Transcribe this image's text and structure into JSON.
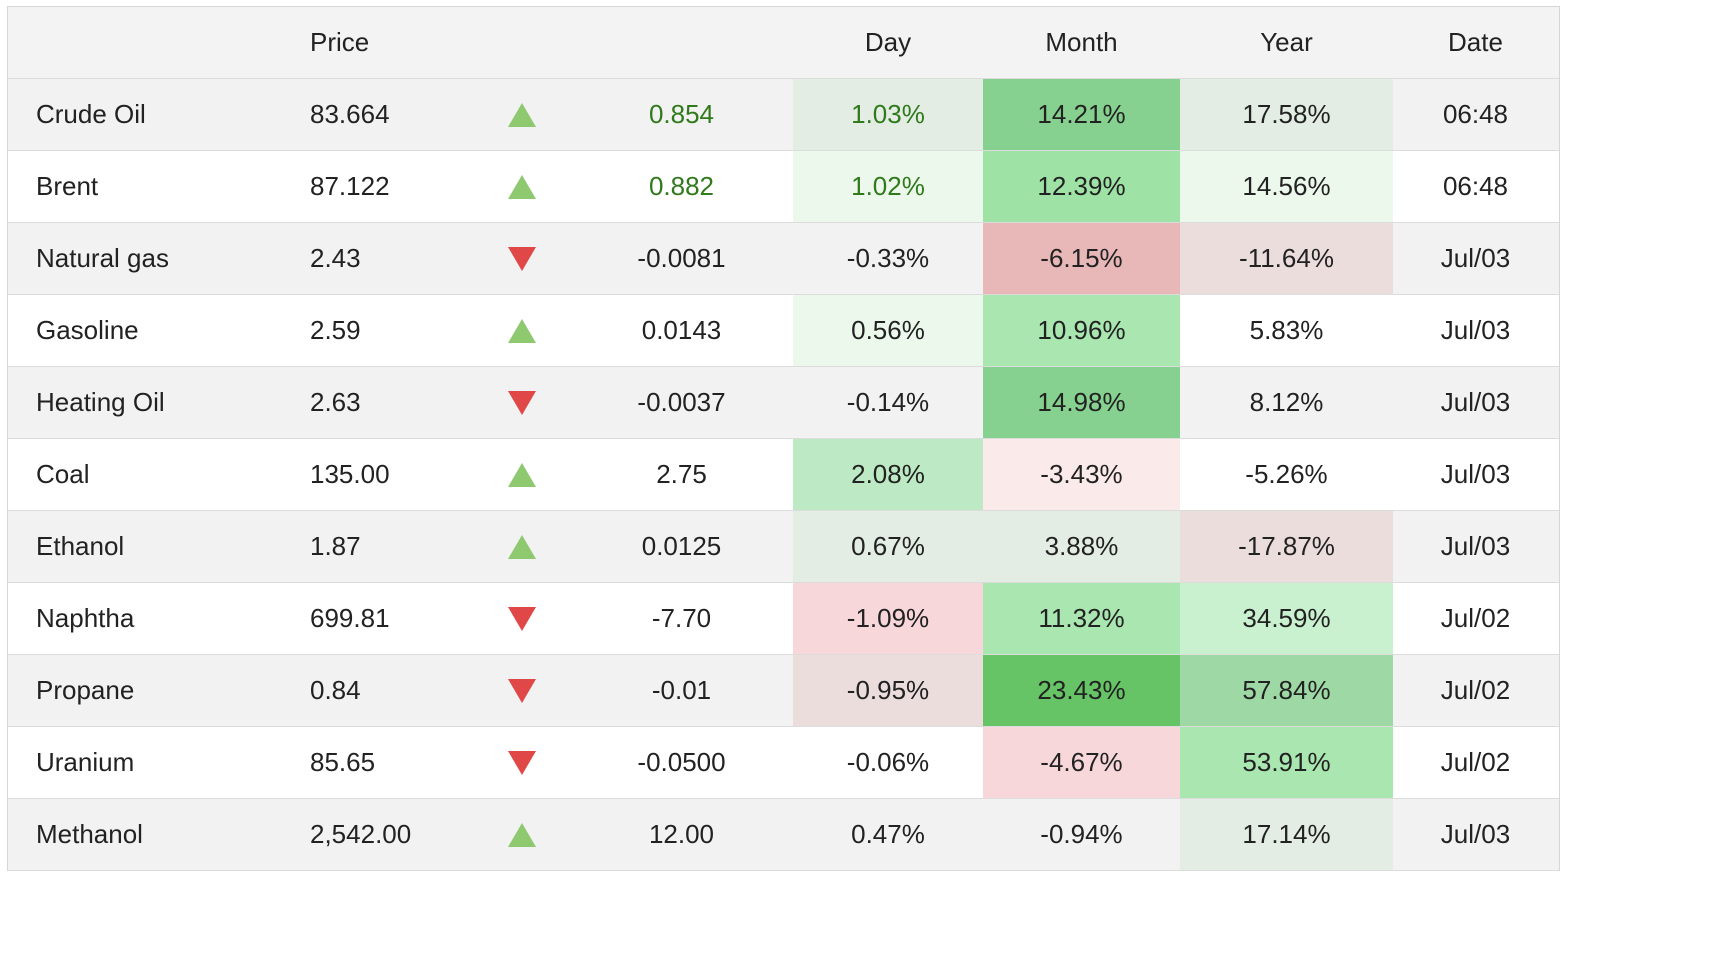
{
  "columns": {
    "name": "",
    "price": "Price",
    "arrow": "",
    "change": "",
    "day": "Day",
    "month": "Month",
    "year": "Year",
    "date": "Date"
  },
  "colors": {
    "up_arrow": "#8fc96f",
    "down_arrow": "#e04848",
    "positive_text": "#2f7a1a"
  },
  "rows": [
    {
      "name": "Crude Oil",
      "price": "83.664",
      "direction": "up",
      "change": "0.854",
      "day": "1.03%",
      "month": "14.21%",
      "year": "17.58%",
      "date": "06:48",
      "highlight_text": true,
      "day_bg": "#e3ede3",
      "month_bg": "#86d18f",
      "year_bg": "#e3ede3"
    },
    {
      "name": "Brent",
      "price": "87.122",
      "direction": "up",
      "change": "0.882",
      "day": "1.02%",
      "month": "12.39%",
      "year": "14.56%",
      "date": "06:48",
      "highlight_text": true,
      "day_bg": "#edf8ed",
      "month_bg": "#9ee3a5",
      "year_bg": "#edf8ed"
    },
    {
      "name": "Natural gas",
      "price": "2.43",
      "direction": "down",
      "change": "-0.0081",
      "day": "-0.33%",
      "month": "-6.15%",
      "year": "-11.64%",
      "date": "Jul/03",
      "highlight_text": false,
      "day_bg": "",
      "month_bg": "#e8b8b8",
      "year_bg": "#ecdddd"
    },
    {
      "name": "Gasoline",
      "price": "2.59",
      "direction": "up",
      "change": "0.0143",
      "day": "0.56%",
      "month": "10.96%",
      "year": "5.83%",
      "date": "Jul/03",
      "highlight_text": false,
      "day_bg": "#edf8ed",
      "month_bg": "#a9e6b0",
      "year_bg": ""
    },
    {
      "name": "Heating Oil",
      "price": "2.63",
      "direction": "down",
      "change": "-0.0037",
      "day": "-0.14%",
      "month": "14.98%",
      "year": "8.12%",
      "date": "Jul/03",
      "highlight_text": false,
      "day_bg": "",
      "month_bg": "#86d18f",
      "year_bg": ""
    },
    {
      "name": "Coal",
      "price": "135.00",
      "direction": "up",
      "change": "2.75",
      "day": "2.08%",
      "month": "-3.43%",
      "year": "-5.26%",
      "date": "Jul/03",
      "highlight_text": false,
      "day_bg": "#bdeac4",
      "month_bg": "#fbeaea",
      "year_bg": ""
    },
    {
      "name": "Ethanol",
      "price": "1.87",
      "direction": "up",
      "change": "0.0125",
      "day": "0.67%",
      "month": "3.88%",
      "year": "-17.87%",
      "date": "Jul/03",
      "highlight_text": false,
      "day_bg": "#e3ede3",
      "month_bg": "#e3ede3",
      "year_bg": "#ecdddd"
    },
    {
      "name": "Naphtha",
      "price": "699.81",
      "direction": "down",
      "change": "-7.70",
      "day": "-1.09%",
      "month": "11.32%",
      "year": "34.59%",
      "date": "Jul/02",
      "highlight_text": false,
      "day_bg": "#f7d7da",
      "month_bg": "#a9e6b0",
      "year_bg": "#c9f0cf"
    },
    {
      "name": "Propane",
      "price": "0.84",
      "direction": "down",
      "change": "-0.01",
      "day": "-0.95%",
      "month": "23.43%",
      "year": "57.84%",
      "date": "Jul/02",
      "highlight_text": false,
      "day_bg": "#ecdddd",
      "month_bg": "#66c467",
      "year_bg": "#9ed9a5"
    },
    {
      "name": "Uranium",
      "price": "85.65",
      "direction": "down",
      "change": "-0.0500",
      "day": "-0.06%",
      "month": "-4.67%",
      "year": "53.91%",
      "date": "Jul/02",
      "highlight_text": false,
      "day_bg": "",
      "month_bg": "#f7d7da",
      "year_bg": "#a9e6b0"
    },
    {
      "name": "Methanol",
      "price": "2,542.00",
      "direction": "up",
      "change": "12.00",
      "day": "0.47%",
      "month": "-0.94%",
      "year": "17.14%",
      "date": "Jul/03",
      "highlight_text": false,
      "day_bg": "",
      "month_bg": "",
      "year_bg": "#e3ede3"
    }
  ]
}
